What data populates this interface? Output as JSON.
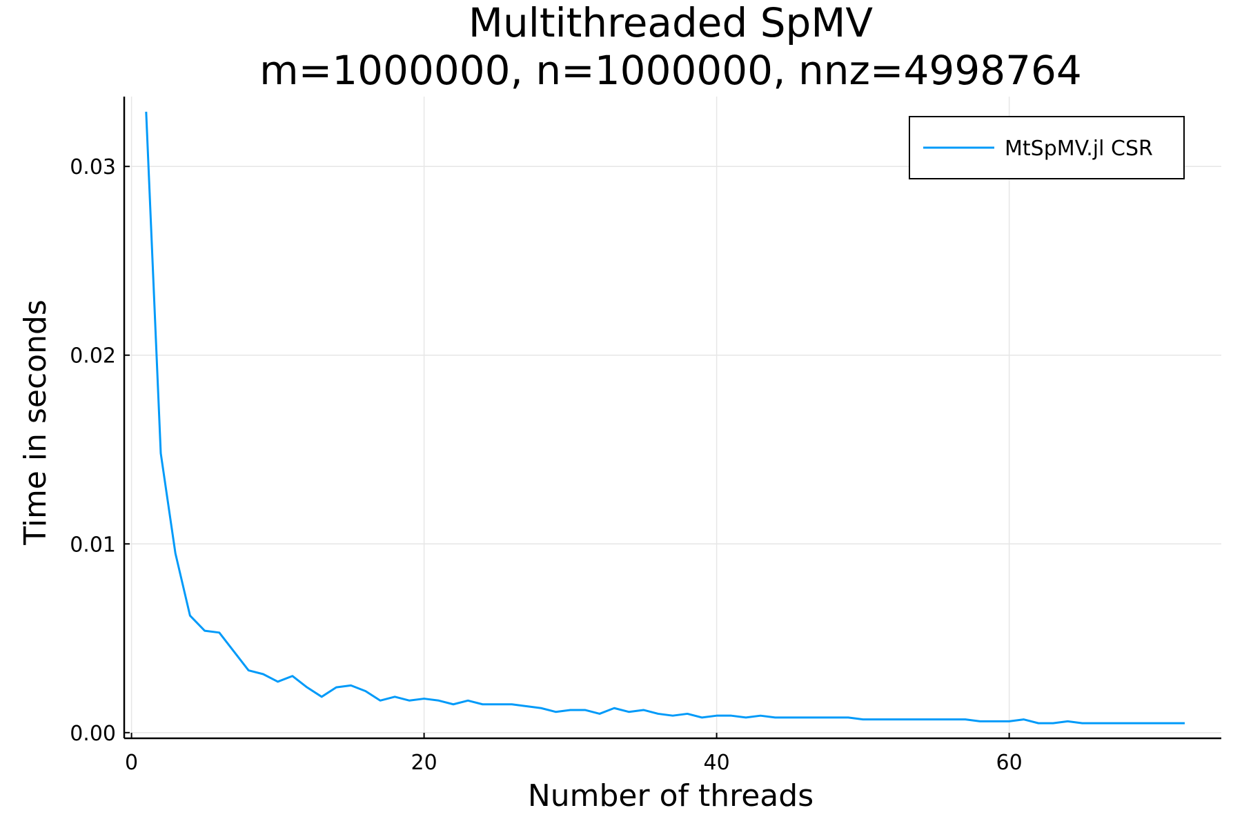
{
  "chart_data": {
    "type": "line",
    "title": [
      "Multithreaded SpMV",
      "m=1000000, n=1000000, nnz=4998764"
    ],
    "xlabel": "Number of threads",
    "ylabel": "Time in seconds",
    "xlim": [
      -0.5,
      74.5
    ],
    "ylim": [
      -0.0003,
      0.0337
    ],
    "xticks": [
      0,
      20,
      40,
      60
    ],
    "xtick_labels": [
      "0",
      "20",
      "40",
      "60"
    ],
    "yticks": [
      0.0,
      0.01,
      0.02,
      0.03
    ],
    "ytick_labels": [
      "0.00",
      "0.01",
      "0.02",
      "0.03"
    ],
    "grid": true,
    "legend_position": "top-right",
    "series": [
      {
        "name": "MtSpMV.jl CSR",
        "color": "#009af9",
        "x": [
          1,
          2,
          3,
          4,
          5,
          6,
          7,
          8,
          9,
          10,
          11,
          12,
          13,
          14,
          15,
          16,
          17,
          18,
          19,
          20,
          21,
          22,
          23,
          24,
          25,
          26,
          27,
          28,
          29,
          30,
          31,
          32,
          33,
          34,
          35,
          36,
          37,
          38,
          39,
          40,
          41,
          42,
          43,
          44,
          45,
          46,
          47,
          48,
          49,
          50,
          51,
          52,
          53,
          54,
          55,
          56,
          57,
          58,
          59,
          60,
          61,
          62,
          63,
          64,
          65,
          66,
          67,
          68,
          69,
          70,
          71,
          72
        ],
        "y": [
          0.0329,
          0.0148,
          0.0095,
          0.0062,
          0.0054,
          0.0053,
          0.0043,
          0.0033,
          0.0031,
          0.0027,
          0.003,
          0.0024,
          0.0019,
          0.0024,
          0.0025,
          0.0022,
          0.0017,
          0.0019,
          0.0017,
          0.0018,
          0.0017,
          0.0015,
          0.0017,
          0.0015,
          0.0015,
          0.0015,
          0.0014,
          0.0013,
          0.0011,
          0.0012,
          0.0012,
          0.001,
          0.0013,
          0.0011,
          0.0012,
          0.001,
          0.0009,
          0.001,
          0.0008,
          0.0009,
          0.0009,
          0.0008,
          0.0009,
          0.0008,
          0.0008,
          0.0008,
          0.0008,
          0.0008,
          0.0008,
          0.0007,
          0.0007,
          0.0007,
          0.0007,
          0.0007,
          0.0007,
          0.0007,
          0.0007,
          0.0006,
          0.0006,
          0.0006,
          0.0007,
          0.0005,
          0.0005,
          0.0006,
          0.0005,
          0.0005,
          0.0005,
          0.0005,
          0.0005,
          0.0005,
          0.0005,
          0.0005
        ]
      }
    ]
  }
}
